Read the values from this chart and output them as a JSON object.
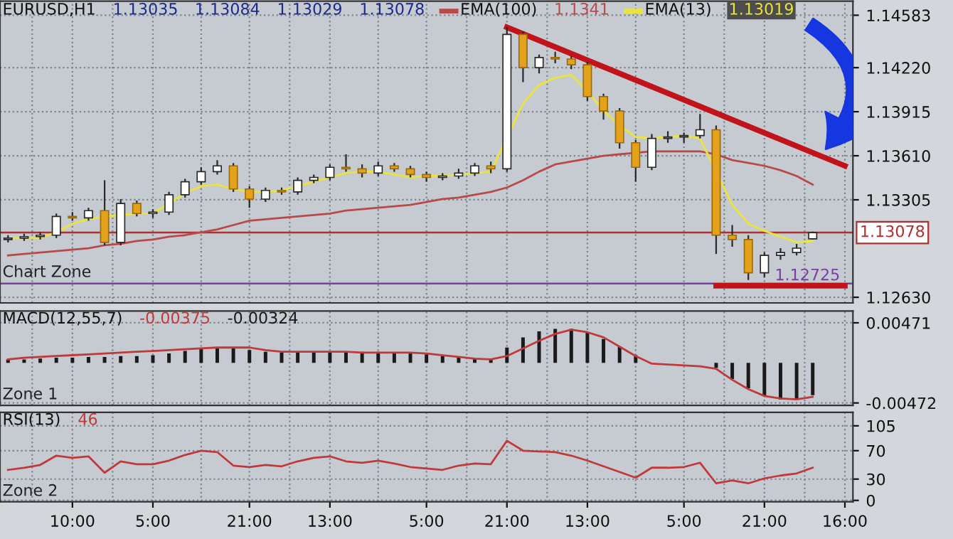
{
  "chart_data": [
    {
      "type": "candlestick",
      "title": "EURUSD,H1",
      "annotations": [
        "1.13035",
        "1.13084",
        "1.13029",
        "1.13078",
        "1.1341",
        "1.13019",
        "Chart Zone"
      ],
      "categories": [
        null,
        null,
        null,
        null,
        null,
        null,
        null,
        null,
        null,
        null,
        null,
        null,
        null,
        null,
        null,
        null,
        null,
        null,
        null,
        null,
        null,
        null,
        null,
        null,
        null,
        null,
        null,
        null,
        null,
        null,
        null,
        null,
        null,
        null,
        null,
        null,
        null,
        null,
        null,
        null,
        null,
        null,
        null,
        null,
        null,
        null,
        null,
        null,
        null,
        null,
        null,
        null,
        null
      ],
      "ohlc": [
        [
          1.1303,
          1.1306,
          1.1301,
          1.1304
        ],
        [
          1.1304,
          1.1307,
          1.1302,
          1.1305
        ],
        [
          1.1305,
          1.1308,
          1.1303,
          1.1306
        ],
        [
          1.1306,
          1.1321,
          1.1304,
          1.1319
        ],
        [
          1.1319,
          1.1322,
          1.1316,
          1.1318
        ],
        [
          1.1318,
          1.1325,
          1.1316,
          1.1323
        ],
        [
          1.1323,
          1.1344,
          1.1299,
          1.1301
        ],
        [
          1.1301,
          1.1331,
          1.1299,
          1.1328
        ],
        [
          1.1328,
          1.133,
          1.1319,
          1.1321
        ],
        [
          1.1321,
          1.1324,
          1.1318,
          1.1322
        ],
        [
          1.1322,
          1.1336,
          1.132,
          1.1334
        ],
        [
          1.1334,
          1.1345,
          1.1332,
          1.1343
        ],
        [
          1.1343,
          1.1353,
          1.1341,
          1.135
        ],
        [
          1.135,
          1.1358,
          1.1348,
          1.1354
        ],
        [
          1.1354,
          1.1356,
          1.1336,
          1.1338
        ],
        [
          1.1338,
          1.134,
          1.1325,
          1.1331
        ],
        [
          1.1331,
          1.1339,
          1.1329,
          1.1337
        ],
        [
          1.1337,
          1.1339,
          1.1334,
          1.1336
        ],
        [
          1.1336,
          1.1346,
          1.1334,
          1.1344
        ],
        [
          1.1344,
          1.1348,
          1.1342,
          1.1346
        ],
        [
          1.1346,
          1.1355,
          1.1344,
          1.1353
        ],
        [
          1.1353,
          1.1362,
          1.135,
          1.1352
        ],
        [
          1.1352,
          1.1355,
          1.1346,
          1.1349
        ],
        [
          1.1349,
          1.1357,
          1.1347,
          1.1354
        ],
        [
          1.1354,
          1.1356,
          1.135,
          1.1352
        ],
        [
          1.1352,
          1.1354,
          1.1346,
          1.1348
        ],
        [
          1.1348,
          1.135,
          1.1343,
          1.1346
        ],
        [
          1.1346,
          1.1349,
          1.1344,
          1.1347
        ],
        [
          1.1347,
          1.1352,
          1.1345,
          1.1349
        ],
        [
          1.1349,
          1.1356,
          1.1347,
          1.1354
        ],
        [
          1.1354,
          1.1357,
          1.1349,
          1.1352
        ],
        [
          1.1352,
          1.145,
          1.135,
          1.1445
        ],
        [
          1.1445,
          1.1447,
          1.1412,
          1.1422
        ],
        [
          1.1422,
          1.1431,
          1.1418,
          1.1429
        ],
        [
          1.1429,
          1.1433,
          1.1425,
          1.1428
        ],
        [
          1.1428,
          1.143,
          1.1421,
          1.1424
        ],
        [
          1.1424,
          1.1426,
          1.1399,
          1.1402
        ],
        [
          1.1402,
          1.1404,
          1.1386,
          1.1392
        ],
        [
          1.1392,
          1.1394,
          1.1366,
          1.137
        ],
        [
          1.137,
          1.1372,
          1.1343,
          1.1353
        ],
        [
          1.1353,
          1.1376,
          1.1351,
          1.1373
        ],
        [
          1.1373,
          1.1378,
          1.137,
          1.1374
        ],
        [
          1.1374,
          1.1377,
          1.137,
          1.1375
        ],
        [
          1.1375,
          1.139,
          1.1373,
          1.1379
        ],
        [
          1.1379,
          1.1382,
          1.1293,
          1.1306
        ],
        [
          1.1306,
          1.1313,
          1.1298,
          1.1303
        ],
        [
          1.1303,
          1.1306,
          1.1275,
          1.128
        ],
        [
          1.128,
          1.1294,
          1.1277,
          1.1292
        ],
        [
          1.1292,
          1.1297,
          1.1289,
          1.1294
        ],
        [
          1.1294,
          1.13,
          1.1292,
          1.1297
        ],
        [
          1.13035,
          1.13084,
          1.13029,
          1.13078
        ],
        null,
        null
      ],
      "series": [
        {
          "type": "line",
          "name": "EMA(100)",
          "color": "#b84a4a",
          "values": [
            1.1292,
            1.1293,
            1.1294,
            1.1295,
            1.1296,
            1.1297,
            1.1299,
            1.13,
            1.1302,
            1.1303,
            1.1305,
            1.1306,
            1.1308,
            1.131,
            1.1313,
            1.1316,
            1.1317,
            1.1318,
            1.1319,
            1.132,
            1.1321,
            1.1323,
            1.1324,
            1.1325,
            1.1326,
            1.1327,
            1.1329,
            1.1331,
            1.1332,
            1.1334,
            1.1336,
            1.1339,
            1.1344,
            1.135,
            1.1355,
            1.1357,
            1.1359,
            1.1361,
            1.1362,
            1.1363,
            1.1364,
            1.1364,
            1.1364,
            1.1364,
            1.1362,
            1.1358,
            1.1356,
            1.1354,
            1.1351,
            1.1347,
            1.1341,
            null,
            null
          ]
        },
        {
          "type": "line",
          "name": "EMA(13)",
          "color": "#ece43c",
          "values": [
            1.1304,
            1.1304,
            1.1304,
            1.1308,
            1.1314,
            1.1317,
            1.1319,
            1.132,
            1.1321,
            1.1321,
            1.1328,
            1.1335,
            1.134,
            1.1341,
            1.1338,
            1.1336,
            1.1336,
            1.1337,
            1.134,
            1.1343,
            1.1346,
            1.1349,
            1.135,
            1.135,
            1.1348,
            1.1346,
            1.1347,
            1.1347,
            1.1348,
            1.1349,
            1.135,
            null,
            1.1397,
            1.141,
            1.1415,
            1.1417,
            1.1406,
            1.1392,
            1.1382,
            1.1374,
            1.1373,
            1.1374,
            1.1375,
            1.1373,
            null,
            1.1327,
            1.1314,
            1.1309,
            1.1305,
            1.1301,
            1.1302,
            null,
            null
          ]
        },
        {
          "type": "line",
          "color": "#c0141a",
          "values": [
            null,
            null,
            null,
            null,
            null,
            null,
            null,
            null,
            null,
            null,
            null,
            null,
            null,
            null,
            null,
            null,
            null,
            null,
            null,
            null,
            null,
            null,
            null,
            null,
            null,
            null,
            null,
            null,
            null,
            null,
            null,
            1.145,
            null,
            null,
            null,
            null,
            null,
            null,
            null,
            null,
            null,
            null,
            null,
            null,
            null,
            null,
            null,
            null,
            null,
            null,
            null,
            null,
            1.1354
          ]
        },
        {
          "type": "line",
          "color": "#c0141a",
          "values": [
            null,
            null,
            null,
            null,
            null,
            null,
            null,
            null,
            null,
            null,
            null,
            null,
            null,
            null,
            null,
            null,
            null,
            null,
            null,
            null,
            null,
            null,
            null,
            null,
            null,
            null,
            null,
            null,
            null,
            null,
            null,
            null,
            null,
            null,
            null,
            null,
            null,
            null,
            null,
            null,
            null,
            null,
            null,
            null,
            1.1271,
            null,
            null,
            null,
            null,
            null,
            null,
            null,
            1.1271
          ]
        }
      ],
      "ref_lines": [
        {
          "axis": "y",
          "value": 1.13078,
          "label": "1.13078",
          "color": "#b03030"
        },
        {
          "axis": "y",
          "value": 1.12725,
          "label": "1.12725",
          "color": "#7b3fa0"
        }
      ],
      "ylim": [
        1.12591,
        1.14681
      ],
      "yticks": [
        1.14583,
        {
          "value": 1.1422,
          "label": "1.14220"
        },
        1.13915,
        {
          "value": 1.1361,
          "label": "1.13610"
        },
        1.13305,
        {
          "value": 1.1263,
          "label": "1.12630"
        }
      ],
      "grid": true,
      "marker": "none",
      "tick_labels": "y",
      "legend": "top"
    },
    {
      "type": "bar",
      "title": "MACD(12,55,7)",
      "annotations": [
        "-0.00375",
        "-0.00324",
        "Zone 1"
      ],
      "categories": [
        null,
        null,
        null,
        null,
        null,
        null,
        null,
        null,
        null,
        null,
        null,
        null,
        null,
        null,
        null,
        null,
        null,
        null,
        null,
        null,
        null,
        null,
        null,
        null,
        null,
        null,
        null,
        null,
        null,
        null,
        null,
        null,
        null,
        null,
        null,
        null,
        null,
        null,
        null,
        null,
        null,
        null,
        null,
        null,
        null,
        null,
        null,
        null,
        null,
        null,
        null,
        null,
        null
      ],
      "series": [
        {
          "type": "bar",
          "color": "#1a1a1a",
          "values": [
            0.0004,
            0.0004,
            0.0005,
            0.0006,
            0.0006,
            0.0007,
            0.0007,
            0.0008,
            0.0008,
            0.0009,
            0.0011,
            0.0014,
            0.0017,
            0.0018,
            0.0017,
            0.0015,
            0.0013,
            0.0012,
            0.0012,
            0.0012,
            0.0013,
            0.0013,
            0.0013,
            0.0013,
            0.0012,
            0.0011,
            0.001,
            0.0008,
            0.0006,
            0.0005,
            0.0005,
            0.0018,
            0.003,
            0.0037,
            0.004,
            0.004,
            0.0036,
            0.0028,
            0.0019,
            0.0009,
            null,
            0,
            0,
            0,
            -0.0006,
            -0.0019,
            -0.003,
            -0.0039,
            -0.0043,
            -0.0043,
            -0.0038,
            null,
            null
          ]
        },
        {
          "type": "line",
          "color": "#c0393b",
          "values": [
            0.0004,
            0.0006,
            0.0007,
            0.0008,
            0.0009,
            0.001,
            0.0011,
            0.0012,
            0.0013,
            0.0014,
            0.0015,
            0.0016,
            0.0017,
            0.0018,
            0.0018,
            0.0018,
            0.0015,
            0.0013,
            0.0013,
            0.0013,
            0.0013,
            0.0013,
            0.0012,
            0.0012,
            0.0012,
            0.0012,
            0.0011,
            0.0009,
            0.0007,
            0.0005,
            0.0004,
            0.0008,
            0.0017,
            0.0026,
            0.0034,
            0.0039,
            0.0036,
            0.003,
            0.0019,
            0.0008,
            -0.0001,
            -0.0002,
            -0.0003,
            -0.0004,
            -0.0007,
            -0.002,
            -0.0031,
            -0.0039,
            -0.0042,
            -0.0043,
            -0.004,
            null,
            null
          ]
        }
      ],
      "ylim": [
        -0.005,
        0.0061
      ],
      "yticks": [
        0.00471,
        -0.00472
      ],
      "grid": true,
      "tick_labels": "y"
    },
    {
      "type": "line",
      "title": "RSI(13)",
      "annotations": [
        "46",
        "Zone 2"
      ],
      "color": "#c0393b",
      "categories": [
        null,
        null,
        null,
        null,
        "10:00",
        null,
        null,
        null,
        null,
        "5:00",
        null,
        null,
        null,
        null,
        null,
        "21:00",
        null,
        null,
        null,
        null,
        "13:00",
        null,
        null,
        null,
        null,
        null,
        "5:00",
        null,
        null,
        null,
        null,
        "21:00",
        null,
        null,
        null,
        null,
        "13:00",
        null,
        null,
        null,
        null,
        null,
        "5:00",
        null,
        null,
        null,
        null,
        "21:00",
        null,
        null,
        null,
        null,
        "16:00"
      ],
      "values": [
        43,
        46,
        50,
        63,
        60,
        62,
        39,
        55,
        51,
        51,
        56,
        64,
        70,
        68,
        49,
        47,
        50,
        48,
        55,
        60,
        62,
        55,
        53,
        56,
        52,
        47,
        45,
        43,
        49,
        52,
        51,
        84,
        70,
        69,
        68,
        63,
        56,
        48,
        40,
        32,
        46,
        46,
        47,
        53,
        24,
        28,
        24,
        31,
        35,
        38,
        46,
        null,
        null
      ],
      "ylim": [
        -2,
        124
      ],
      "yticks": [
        0,
        30,
        70,
        105
      ],
      "grid": true,
      "marker": "none"
    }
  ]
}
